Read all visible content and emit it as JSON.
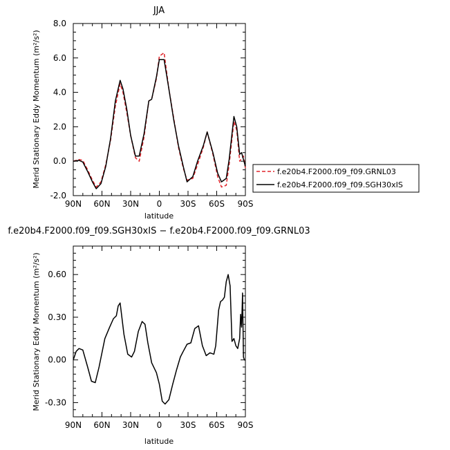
{
  "chart_data": [
    {
      "type": "line",
      "title": "JJA",
      "xlabel": "latitude",
      "ylabel": "Merid Stationary Eddy Momentum (m²/s²)",
      "x_ticks": [
        "90N",
        "60N",
        "30N",
        "0",
        "30S",
        "60S",
        "90S"
      ],
      "y_ticks": [
        "-2.0",
        "0.0",
        "2.0",
        "4.0",
        "6.0",
        "8.0"
      ],
      "xlim": [
        90,
        -90
      ],
      "ylim": [
        -2,
        8
      ],
      "grid": false,
      "legend_position": "right",
      "series": [
        {
          "name": "f.e20b4.F2000.f09_f09.GRNL03",
          "color": "#e0242a",
          "dash": "dashed",
          "x": [
            90,
            84,
            80,
            75,
            70,
            66,
            61,
            56,
            51,
            46,
            41,
            38,
            34,
            30,
            25,
            21,
            16,
            11,
            8,
            3,
            0,
            -5,
            -10,
            -15,
            -20,
            -25,
            -29,
            -35,
            -40,
            -46,
            -50,
            -56,
            -61,
            -65,
            -70,
            -73,
            -78,
            -81,
            -84,
            -88,
            -90
          ],
          "values": [
            0,
            0.1,
            0.05,
            -0.5,
            -1.1,
            -1.5,
            -1.2,
            -0.2,
            1.2,
            3.2,
            4.5,
            4.0,
            2.8,
            1.5,
            0.2,
            0.0,
            1.4,
            3.5,
            3.6,
            4.8,
            6.1,
            6.3,
            4.2,
            2.5,
            0.8,
            -0.4,
            -1.1,
            -1.0,
            -0.2,
            0.8,
            1.7,
            0.4,
            -0.9,
            -1.5,
            -1.4,
            -0.2,
            2.3,
            1.8,
            0.0,
            0.3,
            -0.4
          ]
        },
        {
          "name": "f.e20b4.F2000.f09_f09.SGH30xIS",
          "color": "#000000",
          "dash": "solid",
          "x": [
            90,
            84,
            80,
            75,
            70,
            66,
            61,
            56,
            51,
            46,
            41,
            38,
            34,
            30,
            25,
            21,
            16,
            11,
            8,
            3,
            0,
            -5,
            -10,
            -15,
            -20,
            -25,
            -29,
            -35,
            -40,
            -46,
            -50,
            -56,
            -61,
            -65,
            -70,
            -73,
            -78,
            -81,
            -84,
            -86,
            -88,
            -90
          ],
          "values": [
            0,
            0.05,
            -0.05,
            -0.6,
            -1.2,
            -1.6,
            -1.3,
            -0.3,
            1.3,
            3.5,
            4.7,
            4.2,
            3.0,
            1.5,
            0.3,
            0.3,
            1.6,
            3.5,
            3.6,
            4.9,
            5.9,
            5.9,
            4.2,
            2.4,
            0.9,
            -0.3,
            -1.2,
            -0.9,
            0.0,
            0.9,
            1.7,
            0.5,
            -0.7,
            -1.2,
            -1.0,
            0.1,
            2.6,
            2.0,
            0.4,
            0.5,
            0.1,
            -0.3
          ]
        }
      ]
    },
    {
      "type": "line",
      "title": "f.e20b4.F2000.f09_f09.SGH30xIS − f.e20b4.F2000.f09_f09.GRNL03",
      "xlabel": "latitude",
      "ylabel": "Merid Stationary Eddy Momentum (m²/s²)",
      "x_ticks": [
        "90N",
        "60N",
        "30N",
        "0",
        "30S",
        "60S",
        "90S"
      ],
      "y_ticks": [
        "-0.30",
        "0.00",
        "0.30",
        "0.60"
      ],
      "xlim": [
        90,
        -90
      ],
      "ylim": [
        -0.4,
        0.8
      ],
      "grid": false,
      "series": [
        {
          "name": "",
          "color": "#000000",
          "dash": "solid",
          "x": [
            90,
            87,
            84,
            80,
            75,
            71,
            67,
            63,
            60,
            57,
            52,
            48,
            45,
            43,
            41,
            37,
            33,
            29,
            26,
            22,
            18,
            15,
            12,
            8,
            3,
            0,
            -3,
            -6,
            -10,
            -14,
            -18,
            -22,
            -25,
            -29,
            -33,
            -37,
            -41,
            -45,
            -49,
            -53,
            -57,
            -59,
            -62,
            -64,
            -66,
            -68,
            -70,
            -72,
            -74,
            -76,
            -78,
            -80,
            -82,
            -84,
            -85,
            -86,
            -87,
            -88,
            -89,
            -90
          ],
          "values": [
            0.0,
            0.06,
            0.08,
            0.07,
            -0.05,
            -0.15,
            -0.16,
            -0.05,
            0.05,
            0.15,
            0.23,
            0.29,
            0.31,
            0.38,
            0.4,
            0.18,
            0.04,
            0.02,
            0.06,
            0.2,
            0.27,
            0.25,
            0.12,
            -0.02,
            -0.09,
            -0.17,
            -0.29,
            -0.31,
            -0.28,
            -0.17,
            -0.07,
            0.02,
            0.06,
            0.11,
            0.12,
            0.22,
            0.24,
            0.1,
            0.03,
            0.05,
            0.04,
            0.1,
            0.35,
            0.41,
            0.42,
            0.44,
            0.55,
            0.6,
            0.52,
            0.13,
            0.15,
            0.1,
            0.08,
            0.15,
            0.32,
            0.23,
            0.47,
            0.02,
            0.0,
            0.0
          ]
        }
      ]
    }
  ]
}
